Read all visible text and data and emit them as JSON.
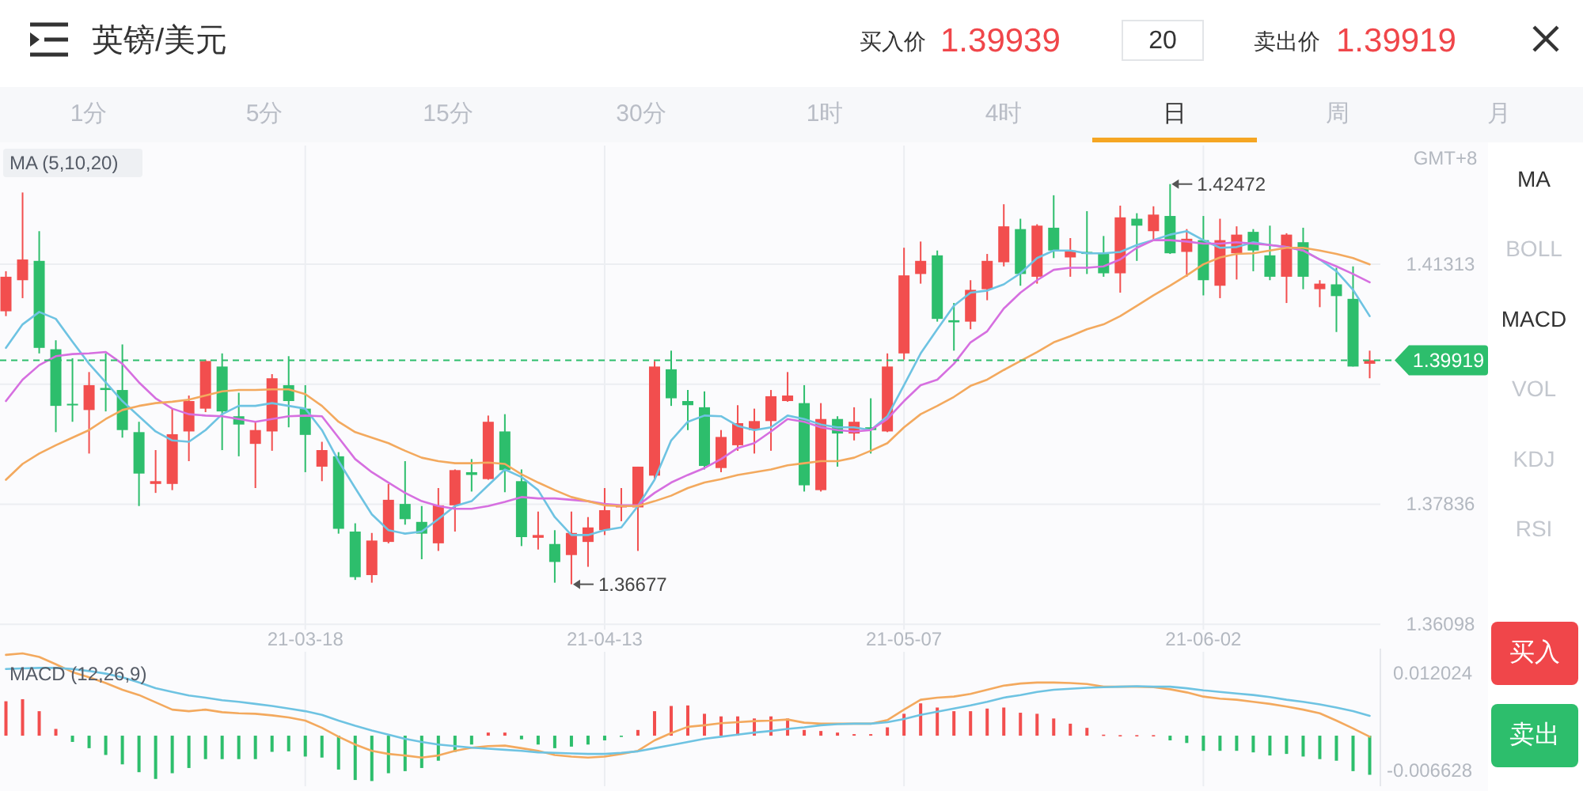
{
  "chart_data": [
    {
      "type": "other",
      "title": "英镑/美元",
      "annotations": [
        "买入价",
        "1.39939",
        "20",
        "卖出价",
        "1.39919",
        "1分",
        "5分",
        "15分",
        "30分",
        "1时",
        "4时",
        "日",
        "周",
        "月",
        "MA",
        "BOLL",
        "MACD",
        "VOL",
        "KDJ",
        "RSI",
        "买入",
        "卖出"
      ]
    },
    {
      "type": "candlestick",
      "title": "MA (5,10,20)",
      "categories": [
        null,
        null,
        null,
        null,
        null,
        null,
        null,
        null,
        null,
        null,
        null,
        null,
        null,
        null,
        null,
        null,
        null,
        null,
        "21-03-18",
        null,
        null,
        null,
        null,
        null,
        null,
        null,
        null,
        null,
        null,
        null,
        null,
        null,
        null,
        null,
        null,
        null,
        "21-04-13",
        null,
        null,
        null,
        null,
        null,
        null,
        null,
        null,
        null,
        null,
        null,
        null,
        null,
        null,
        null,
        null,
        null,
        "21-05-07",
        null,
        null,
        null,
        null,
        null,
        null,
        null,
        null,
        null,
        null,
        null,
        null,
        null,
        null,
        null,
        null,
        null,
        "21-06-02",
        null,
        null,
        null,
        null,
        null,
        null,
        null,
        null,
        null,
        null
      ],
      "ohlc": [
        [
          1.4063,
          1.4121,
          1.4056,
          1.4113
        ],
        [
          1.4108,
          1.4235,
          1.4082,
          1.4138
        ],
        [
          1.4136,
          1.4179,
          1.4002,
          1.401
        ],
        [
          1.4008,
          1.4021,
          1.3888,
          1.3926
        ],
        [
          1.3929,
          1.3995,
          1.3903,
          1.3927
        ],
        [
          1.392,
          1.3975,
          1.3857,
          1.3956
        ],
        [
          1.3952,
          1.4002,
          1.3918,
          1.3949
        ],
        [
          1.3949,
          1.4015,
          1.388,
          1.3891
        ],
        [
          1.3888,
          1.3903,
          1.3781,
          1.3828
        ],
        [
          1.3813,
          1.3862,
          1.38,
          1.3817
        ],
        [
          1.3813,
          1.3922,
          1.3804,
          1.3885
        ],
        [
          1.3889,
          1.3941,
          1.3846,
          1.3933
        ],
        [
          1.3922,
          1.3993,
          1.3917,
          1.3991
        ],
        [
          1.3983,
          1.4002,
          1.3862,
          1.3918
        ],
        [
          1.3911,
          1.3945,
          1.3853,
          1.3899
        ],
        [
          1.3871,
          1.3903,
          1.3807,
          1.3891
        ],
        [
          1.3889,
          1.3972,
          1.3861,
          1.3966
        ],
        [
          1.3956,
          1.3998,
          1.3895,
          1.3933
        ],
        [
          1.3922,
          1.3956,
          1.383,
          1.3884
        ],
        [
          1.3838,
          1.3874,
          1.3817,
          1.3862
        ],
        [
          1.3853,
          1.3859,
          1.3741,
          1.3748
        ],
        [
          1.3744,
          1.3756,
          1.3674,
          1.3678
        ],
        [
          1.3681,
          1.3742,
          1.367,
          1.3731
        ],
        [
          1.3729,
          1.3813,
          1.3727,
          1.379
        ],
        [
          1.3784,
          1.3846,
          1.3754,
          1.3762
        ],
        [
          1.3758,
          1.3781,
          1.3704,
          1.3741
        ],
        [
          1.3727,
          1.3807,
          1.3716,
          1.3782
        ],
        [
          1.3782,
          1.3834,
          1.3744,
          1.3833
        ],
        [
          1.383,
          1.3849,
          1.3802,
          1.3826
        ],
        [
          1.382,
          1.3912,
          1.3819,
          1.3903
        ],
        [
          1.3889,
          1.3914,
          1.3801,
          1.3833
        ],
        [
          1.3817,
          1.3834,
          1.3723,
          1.3736
        ],
        [
          1.3735,
          1.3773,
          1.3718,
          1.3739
        ],
        [
          1.3726,
          1.3746,
          1.367,
          1.37
        ],
        [
          1.371,
          1.3773,
          1.36677,
          1.3742
        ],
        [
          1.3729,
          1.3765,
          1.3693,
          1.375
        ],
        [
          1.3746,
          1.3807,
          1.3739,
          1.3775
        ],
        [
          1.3779,
          1.3807,
          1.3759,
          1.3782
        ],
        [
          1.3779,
          1.3838,
          1.3716,
          1.3838
        ],
        [
          1.3825,
          1.3991,
          1.3819,
          1.3983
        ],
        [
          1.3979,
          1.4006,
          1.3926,
          1.3937
        ],
        [
          1.3933,
          1.3949,
          1.3891,
          1.3927
        ],
        [
          1.3924,
          1.3947,
          1.3834,
          1.3839
        ],
        [
          1.3836,
          1.3891,
          1.383,
          1.3881
        ],
        [
          1.3869,
          1.3927,
          1.3861,
          1.3901
        ],
        [
          1.3891,
          1.3922,
          1.3857,
          1.3904
        ],
        [
          1.3904,
          1.3949,
          1.3861,
          1.394
        ],
        [
          1.3933,
          1.3975,
          1.3932,
          1.3941
        ],
        [
          1.393,
          1.3956,
          1.3802,
          1.3811
        ],
        [
          1.3804,
          1.393,
          1.3802,
          1.3907
        ],
        [
          1.3907,
          1.3911,
          1.3838,
          1.3886
        ],
        [
          1.3886,
          1.3924,
          1.3876,
          1.3903
        ],
        [
          1.3895,
          1.3937,
          1.3857,
          1.3891
        ],
        [
          1.3889,
          1.4002,
          1.3888,
          1.3983
        ],
        [
          1.4002,
          1.4155,
          1.3993,
          1.4115
        ],
        [
          1.4117,
          1.4164,
          1.4103,
          1.4136
        ],
        [
          1.4144,
          1.4151,
          1.4048,
          1.4052
        ],
        [
          1.405,
          1.4075,
          1.4006,
          1.4047
        ],
        [
          1.4048,
          1.4108,
          1.4037,
          1.4094
        ],
        [
          1.4095,
          1.4146,
          1.4079,
          1.4136
        ],
        [
          1.4134,
          1.4218,
          1.4128,
          1.4186
        ],
        [
          1.4182,
          1.4197,
          1.41,
          1.4117
        ],
        [
          1.4113,
          1.4189,
          1.4103,
          1.4187
        ],
        [
          1.4184,
          1.4231,
          1.414,
          1.4151
        ],
        [
          1.4141,
          1.4169,
          1.4113,
          1.4151
        ],
        [
          1.4149,
          1.4208,
          1.4117,
          1.4146
        ],
        [
          1.4146,
          1.4172,
          1.4113,
          1.4118
        ],
        [
          1.4118,
          1.4216,
          1.409,
          1.4199
        ],
        [
          1.4197,
          1.4205,
          1.4136,
          1.4187
        ],
        [
          1.4179,
          1.4215,
          1.4166,
          1.4203
        ],
        [
          1.4201,
          1.42472,
          1.4146,
          1.4147
        ],
        [
          1.4149,
          1.4182,
          1.4113,
          1.4168
        ],
        [
          1.4166,
          1.4201,
          1.4086,
          1.4108
        ],
        [
          1.41,
          1.4197,
          1.4082,
          1.4166
        ],
        [
          1.4147,
          1.4186,
          1.4109,
          1.4174
        ],
        [
          1.4178,
          1.4182,
          1.4121,
          1.4151
        ],
        [
          1.4144,
          1.4187,
          1.4108,
          1.4113
        ],
        [
          1.4113,
          1.4176,
          1.4075,
          1.4174
        ],
        [
          1.4163,
          1.4184,
          1.4095,
          1.4113
        ],
        [
          1.4095,
          1.4108,
          1.4069,
          1.4103
        ],
        [
          1.4102,
          1.4126,
          1.4033,
          1.4085
        ],
        [
          1.4081,
          1.4128,
          1.3983,
          1.3983
        ],
        [
          1.3987,
          1.4006,
          1.3966,
          1.3992
        ]
      ],
      "colors": [
        "#f24e4e",
        "#f24e4e",
        "#2dbe6c",
        "#2dbe6c",
        "#2dbe6c",
        "#f24e4e",
        "#2dbe6c",
        "#2dbe6c",
        "#2dbe6c",
        "#f24e4e",
        "#f24e4e",
        "#f24e4e",
        "#f24e4e",
        "#2dbe6c",
        "#2dbe6c",
        "#f24e4e",
        "#f24e4e",
        "#2dbe6c",
        "#2dbe6c",
        "#f24e4e",
        "#2dbe6c",
        "#2dbe6c",
        "#f24e4e",
        "#f24e4e",
        "#2dbe6c",
        "#2dbe6c",
        "#f24e4e",
        "#f24e4e",
        "#2dbe6c",
        "#f24e4e",
        "#2dbe6c",
        "#2dbe6c",
        "#f24e4e",
        "#2dbe6c",
        "#f24e4e",
        "#f24e4e",
        "#f24e4e",
        "#f24e4e",
        "#f24e4e",
        "#f24e4e",
        "#2dbe6c",
        "#2dbe6c",
        "#2dbe6c",
        "#f24e4e",
        "#f24e4e",
        "#f24e4e",
        "#f24e4e",
        "#f24e4e",
        "#2dbe6c",
        "#f24e4e",
        "#2dbe6c",
        "#f24e4e",
        "#2dbe6c",
        "#f24e4e",
        "#f24e4e",
        "#f24e4e",
        "#2dbe6c",
        "#2dbe6c",
        "#f24e4e",
        "#f24e4e",
        "#f24e4e",
        "#2dbe6c",
        "#f24e4e",
        "#2dbe6c",
        "#f24e4e",
        "#2dbe6c",
        "#2dbe6c",
        "#f24e4e",
        "#2dbe6c",
        "#f24e4e",
        "#2dbe6c",
        "#f24e4e",
        "#2dbe6c",
        "#f24e4e",
        "#f24e4e",
        "#2dbe6c",
        "#2dbe6c",
        "#f24e4e",
        "#2dbe6c",
        "#f24e4e",
        "#2dbe6c",
        "#2dbe6c",
        "#f24e4e"
      ],
      "series": [
        {
          "type": "line",
          "color": "#6ec3e2",
          "values": [
            1.401,
            1.4044,
            1.4062,
            1.4052,
            1.4019,
            1.3987,
            1.396,
            1.3933,
            1.3911,
            1.3889,
            1.3876,
            1.3874,
            1.3891,
            1.3914,
            1.3926,
            1.3926,
            1.393,
            1.3926,
            1.3922,
            1.3891,
            1.3846,
            1.3807,
            1.3769,
            1.3746,
            1.3741,
            1.3744,
            1.3762,
            1.3781,
            1.3788,
            1.3811,
            1.3834,
            1.3823,
            1.3804,
            1.3765,
            1.3739,
            1.3739,
            1.3746,
            1.375,
            1.3781,
            1.3819,
            1.3876,
            1.3903,
            1.3912,
            1.3911,
            1.3897,
            1.3891,
            1.3895,
            1.3912,
            1.3907,
            1.3899,
            1.3895,
            1.3895,
            1.3891,
            1.3911,
            1.3956,
            1.4002,
            1.4037,
            1.4071,
            1.409,
            1.4093,
            1.4102,
            1.4118,
            1.414,
            1.4151,
            1.4151,
            1.4147,
            1.4147,
            1.4149,
            1.4159,
            1.4166,
            1.4174,
            1.4179,
            1.4166,
            1.4155,
            1.4156,
            1.4163,
            1.4159,
            1.4156,
            1.4151,
            1.4138,
            1.4121,
            1.4094,
            1.4056
          ]
        },
        {
          "type": "line",
          "color": "#d66fe0",
          "values": [
            1.3933,
            1.3964,
            1.3985,
            1.3998,
            1.4001,
            1.4002,
            1.4004,
            1.3987,
            1.396,
            1.3937,
            1.3922,
            1.3914,
            1.3912,
            1.3911,
            1.3907,
            1.3903,
            1.3907,
            1.3911,
            1.3912,
            1.3911,
            1.388,
            1.3849,
            1.383,
            1.3815,
            1.38,
            1.3788,
            1.3781,
            1.3777,
            1.3777,
            1.3781,
            1.3787,
            1.3794,
            1.3792,
            1.3792,
            1.379,
            1.3788,
            1.3784,
            1.3782,
            1.3782,
            1.38,
            1.3815,
            1.3826,
            1.3836,
            1.3849,
            1.3865,
            1.3872,
            1.3889,
            1.3907,
            1.3903,
            1.3895,
            1.3891,
            1.3889,
            1.3891,
            1.3907,
            1.3933,
            1.3956,
            1.3964,
            1.3987,
            1.4018,
            1.4034,
            1.4067,
            1.409,
            1.4108,
            1.4123,
            1.4126,
            1.4126,
            1.4128,
            1.4138,
            1.4155,
            1.4166,
            1.4166,
            1.4164,
            1.4161,
            1.4161,
            1.4163,
            1.4161,
            1.4159,
            1.4156,
            1.4151,
            1.4138,
            1.4128,
            1.4117,
            1.4105
          ]
        },
        {
          "type": "line",
          "color": "#f3a95e",
          "values": [
            1.3819,
            1.3842,
            1.3857,
            1.3869,
            1.388,
            1.3891,
            1.3907,
            1.392,
            1.3926,
            1.393,
            1.3932,
            1.3935,
            1.3941,
            1.3947,
            1.3949,
            1.3949,
            1.395,
            1.395,
            1.3943,
            1.3926,
            1.3903,
            1.3888,
            1.388,
            1.3872,
            1.3861,
            1.3851,
            1.3846,
            1.3843,
            1.3843,
            1.3844,
            1.3842,
            1.3827,
            1.3815,
            1.3804,
            1.3794,
            1.3788,
            1.3782,
            1.3781,
            1.3781,
            1.3788,
            1.3796,
            1.3807,
            1.3815,
            1.382,
            1.3826,
            1.383,
            1.3834,
            1.384,
            1.3843,
            1.3846,
            1.3846,
            1.3851,
            1.3861,
            1.3872,
            1.3895,
            1.3914,
            1.3926,
            1.3939,
            1.3955,
            1.3964,
            1.3978,
            1.3991,
            1.4004,
            1.4018,
            1.4027,
            1.4037,
            1.4044,
            1.4056,
            1.4071,
            1.4086,
            1.41,
            1.4115,
            1.4131,
            1.4141,
            1.4146,
            1.4147,
            1.4151,
            1.4155,
            1.4155,
            1.4151,
            1.4146,
            1.414,
            1.4131
          ]
        }
      ],
      "ylim": [
        1.3602,
        1.4303
      ],
      "yticks": [
        1.36098,
        1.37836,
        {
          "value": 1.39575,
          "label": null
        },
        1.41313
      ],
      "grid": true,
      "ref_lines": [
        {
          "axis": "y",
          "value": 1.39919,
          "label": "1.39919",
          "color": "#2dbe6c",
          "line_style": "dashed"
        }
      ],
      "annotations": [
        "1.42472",
        "1.36677",
        "GMT+8"
      ]
    },
    {
      "type": "bar",
      "title": "MACD (12,26,9)",
      "tick_labels": "y",
      "categories": [
        null,
        null,
        null,
        null,
        null,
        null,
        null,
        null,
        null,
        null,
        null,
        null,
        null,
        null,
        null,
        null,
        null,
        null,
        null,
        null,
        null,
        null,
        null,
        null,
        null,
        null,
        null,
        null,
        null,
        null,
        null,
        null,
        null,
        null,
        null,
        null,
        null,
        null,
        null,
        null,
        null,
        null,
        null,
        null,
        null,
        null,
        null,
        null,
        null,
        null,
        null,
        null,
        null,
        null,
        null,
        null,
        null,
        null,
        null,
        null,
        null,
        null,
        null,
        null,
        null,
        null,
        null,
        null,
        null,
        null,
        null,
        null,
        null,
        null,
        null,
        null,
        null,
        null,
        null,
        null,
        null,
        null,
        null
      ],
      "series": [
        {
          "type": "bar",
          "colors": [
            "#f24e4e",
            "#f24e4e",
            "#f24e4e",
            "#f24e4e",
            "#2dbe6c",
            "#2dbe6c",
            "#2dbe6c",
            "#2dbe6c",
            "#2dbe6c",
            "#2dbe6c",
            "#2dbe6c",
            "#2dbe6c",
            "#2dbe6c",
            "#2dbe6c",
            "#2dbe6c",
            "#2dbe6c",
            "#2dbe6c",
            "#2dbe6c",
            "#2dbe6c",
            "#2dbe6c",
            "#2dbe6c",
            "#2dbe6c",
            "#2dbe6c",
            "#2dbe6c",
            "#2dbe6c",
            "#2dbe6c",
            "#2dbe6c",
            "#2dbe6c",
            "#2dbe6c",
            "#f24e4e",
            "#f24e4e",
            "#2dbe6c",
            "#2dbe6c",
            "#2dbe6c",
            "#2dbe6c",
            "#2dbe6c",
            "#2dbe6c",
            "#2dbe6c",
            "#f24e4e",
            "#f24e4e",
            "#f24e4e",
            "#f24e4e",
            "#f24e4e",
            "#f24e4e",
            "#f24e4e",
            "#f24e4e",
            "#f24e4e",
            "#f24e4e",
            "#f24e4e",
            "#f24e4e",
            "#f24e4e",
            "#f24e4e",
            "#f24e4e",
            "#f24e4e",
            "#f24e4e",
            "#f24e4e",
            "#f24e4e",
            "#f24e4e",
            "#f24e4e",
            "#f24e4e",
            "#f24e4e",
            "#f24e4e",
            "#f24e4e",
            "#f24e4e",
            "#f24e4e",
            "#f24e4e",
            "#f24e4e",
            "#f24e4e",
            "#f24e4e",
            "#f24e4e",
            "#2dbe6c",
            "#2dbe6c",
            "#2dbe6c",
            "#2dbe6c",
            "#2dbe6c",
            "#2dbe6c",
            "#2dbe6c",
            "#2dbe6c",
            "#2dbe6c",
            "#2dbe6c",
            "#2dbe6c",
            "#2dbe6c",
            "#2dbe6c"
          ],
          "values": [
            0.0066,
            0.007,
            0.0047,
            0.0013,
            -0.0012,
            -0.0024,
            -0.0037,
            -0.0055,
            -0.007,
            -0.0083,
            -0.0072,
            -0.0062,
            -0.0045,
            -0.0045,
            -0.0045,
            -0.0045,
            -0.0031,
            -0.003,
            -0.004,
            -0.0042,
            -0.0065,
            -0.0085,
            -0.0087,
            -0.0072,
            -0.0068,
            -0.0062,
            -0.0048,
            -0.0031,
            -0.0017,
            0.0006,
            0.0006,
            -0.0007,
            -0.0017,
            -0.0024,
            -0.0021,
            -0.0017,
            -0.0009,
            -0.0002,
            0.0011,
            0.0047,
            0.0057,
            0.0058,
            0.0042,
            0.0037,
            0.0037,
            0.0033,
            0.0037,
            0.0033,
            0.0011,
            0.0009,
            0.0006,
            0.0003,
            0.0003,
            0.0016,
            0.0042,
            0.0062,
            0.0054,
            0.0047,
            0.0047,
            0.0052,
            0.0054,
            0.0044,
            0.0042,
            0.0033,
            0.0023,
            0.0015,
            0.0002,
            0.0001,
            0.0001,
            0.0001,
            -0.0009,
            -0.0014,
            -0.0029,
            -0.0029,
            -0.0029,
            -0.0032,
            -0.0038,
            -0.0035,
            -0.004,
            -0.0045,
            -0.0048,
            -0.0068,
            -0.0075
          ]
        },
        {
          "type": "line",
          "color": "#f3a95e",
          "values": [
            0.0155,
            0.0158,
            0.0151,
            0.0137,
            0.0122,
            0.0112,
            0.0101,
            0.0088,
            0.0078,
            0.0064,
            0.005,
            0.0047,
            0.005,
            0.0045,
            0.0043,
            0.0042,
            0.0039,
            0.0035,
            0.0029,
            0.0015,
            -0.0002,
            -0.0017,
            -0.0029,
            -0.0035,
            -0.0038,
            -0.0042,
            -0.0038,
            -0.0029,
            -0.0023,
            -0.002,
            -0.0019,
            -0.0024,
            -0.0029,
            -0.0037,
            -0.004,
            -0.0042,
            -0.004,
            -0.0035,
            -0.0029,
            -0.0009,
            0.0005,
            0.0017,
            0.002,
            0.0024,
            0.0026,
            0.0028,
            0.0029,
            0.0031,
            0.0025,
            0.0023,
            0.0023,
            0.0023,
            0.0023,
            0.003,
            0.005,
            0.0069,
            0.0073,
            0.0075,
            0.008,
            0.0088,
            0.0096,
            0.01,
            0.0102,
            0.0102,
            0.0101,
            0.0099,
            0.0094,
            0.0094,
            0.0094,
            0.0093,
            0.0089,
            0.0083,
            0.0075,
            0.0071,
            0.0069,
            0.0065,
            0.0061,
            0.0056,
            0.005,
            0.0043,
            0.0029,
            0.0014,
            -0.0002
          ]
        },
        {
          "type": "line",
          "color": "#6ec3e2",
          "values": [
            0.0128,
            0.0129,
            0.013,
            0.013,
            0.0128,
            0.0124,
            0.0119,
            0.0112,
            0.0102,
            0.0091,
            0.0084,
            0.0077,
            0.0073,
            0.0068,
            0.0065,
            0.0061,
            0.0057,
            0.0052,
            0.0047,
            0.004,
            0.0029,
            0.0019,
            0.001,
            0.0002,
            -0.0006,
            -0.0012,
            -0.0017,
            -0.002,
            -0.0023,
            -0.0025,
            -0.0027,
            -0.0029,
            -0.0032,
            -0.0033,
            -0.0034,
            -0.0035,
            -0.0035,
            -0.0033,
            -0.003,
            -0.0024,
            -0.0018,
            -0.0012,
            -0.0006,
            -0.0002,
            0.0002,
            0.0006,
            0.0009,
            0.0013,
            0.0016,
            0.002,
            0.0022,
            0.0023,
            0.0023,
            0.0026,
            0.0032,
            0.004,
            0.0046,
            0.0052,
            0.0058,
            0.0065,
            0.0073,
            0.0078,
            0.0084,
            0.0088,
            0.009,
            0.0092,
            0.0093,
            0.0094,
            0.0095,
            0.0094,
            0.0094,
            0.0091,
            0.0087,
            0.0084,
            0.0081,
            0.0078,
            0.0074,
            0.0069,
            0.0065,
            0.006,
            0.0054,
            0.0047,
            0.0038
          ]
        }
      ],
      "ylim": [
        -0.0097,
        0.0167
      ],
      "yticks": [
        0.012024,
        -0.006628
      ]
    }
  ]
}
